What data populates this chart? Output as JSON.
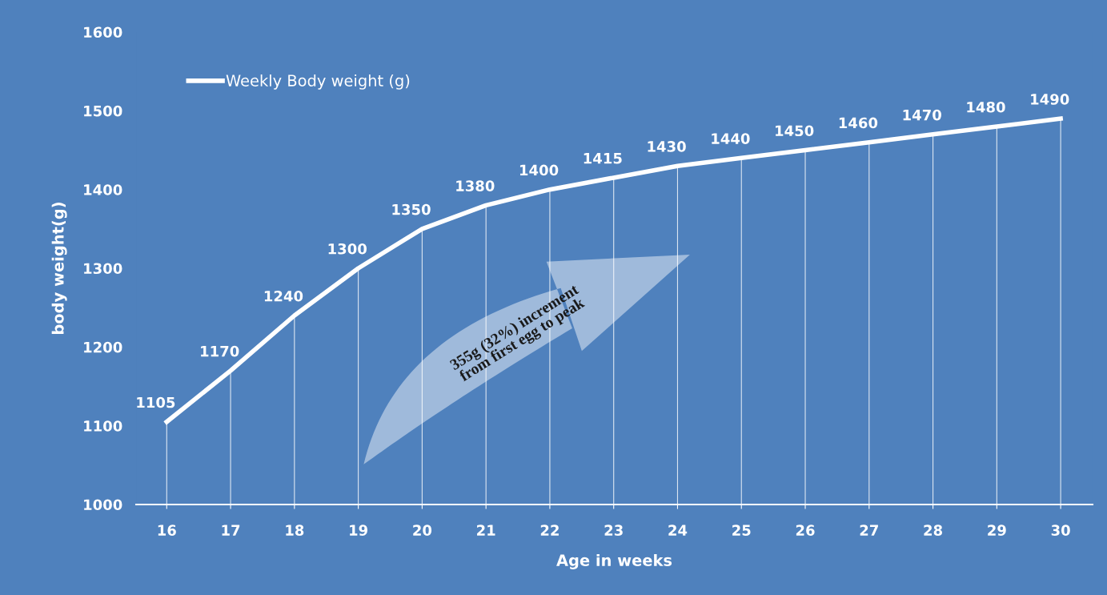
{
  "chart_data": {
    "type": "line",
    "xlabel": "Age in weeks",
    "ylabel": "body weight(g)",
    "categories": [
      "16",
      "17",
      "18",
      "19",
      "20",
      "21",
      "22",
      "23",
      "24",
      "25",
      "26",
      "27",
      "28",
      "29",
      "30"
    ],
    "series": [
      {
        "name": "Weekly Body weight (g)",
        "color": "#ffffff",
        "values": [
          1105,
          1170,
          1240,
          1300,
          1350,
          1380,
          1400,
          1415,
          1430,
          1440,
          1450,
          1460,
          1470,
          1480,
          1490
        ]
      }
    ],
    "ylim": [
      1000,
      1600
    ],
    "yticks": [
      1000,
      1100,
      1200,
      1300,
      1400,
      1500,
      1600
    ],
    "data_labels": true,
    "legend": "top left",
    "grid": "x",
    "marker": "none",
    "line_style": "solid",
    "annotations": [
      "355g (32%) increment\nfrom first egg to peak"
    ]
  }
}
